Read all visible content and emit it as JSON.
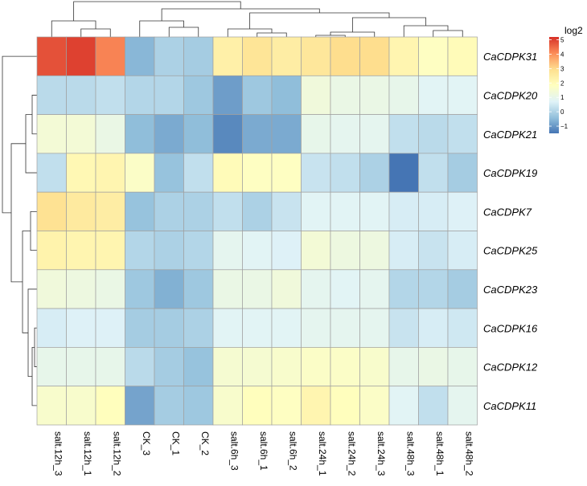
{
  "chart_data": {
    "type": "heatmap",
    "title": "",
    "legend_title": "log2",
    "legend_ticks": [
      "5",
      "4",
      "3",
      "2",
      "1",
      "0",
      "−1"
    ],
    "legend_tick_values": [
      5,
      4,
      3,
      2,
      1,
      0,
      -1
    ],
    "legend_range": [
      -1.5,
      5.2
    ],
    "colors": [
      "#4575b4",
      "#91bfdb",
      "#e0f3f8",
      "#ffffbf",
      "#fee090",
      "#fc8d59",
      "#d73027"
    ],
    "rows": [
      "CaCDPK31",
      "CaCDPK20",
      "CaCDPK21",
      "CaCDPK19",
      "CaCDPK7",
      "CaCDPK25",
      "CaCDPK23",
      "CaCDPK16",
      "CaCDPK12",
      "CaCDPK11"
    ],
    "columns": [
      "salt.12h_3",
      "salt.12h_1",
      "salt.12h_2",
      "CK_3",
      "CK_1",
      "CK_2",
      "salt.6h_3",
      "salt.6h_1",
      "salt.6h_2",
      "salt.24h_1",
      "salt.24h_2",
      "salt.24h_3",
      "salt.48h_3",
      "salt.48h_1",
      "salt.48h_2"
    ],
    "values": [
      [
        4.8,
        5.0,
        4.2,
        -0.5,
        0.0,
        -0.1,
        2.4,
        2.8,
        2.5,
        2.7,
        3.0,
        3.0,
        2.2,
        1.8,
        2.0
      ],
      [
        0.2,
        0.2,
        0.3,
        0.1,
        0.1,
        -0.2,
        -0.9,
        -0.2,
        -0.4,
        1.3,
        1.1,
        1.1,
        1.0,
        0.8,
        0.8
      ],
      [
        1.4,
        1.4,
        1.1,
        -0.4,
        -0.7,
        -0.4,
        -1.2,
        -0.7,
        -0.7,
        1.0,
        0.9,
        0.9,
        0.3,
        0.2,
        0.3
      ],
      [
        0.3,
        2.1,
        2.2,
        1.7,
        -0.3,
        0.3,
        2.0,
        1.8,
        1.8,
        0.4,
        0.3,
        0.0,
        -1.5,
        0.3,
        -0.1
      ],
      [
        2.9,
        2.6,
        2.5,
        -0.3,
        0.0,
        0.0,
        0.3,
        0.0,
        0.4,
        0.8,
        0.8,
        0.8,
        0.6,
        0.6,
        0.7
      ],
      [
        2.3,
        2.2,
        2.2,
        0.1,
        0.0,
        0.1,
        0.9,
        0.8,
        0.7,
        1.4,
        1.2,
        1.2,
        0.6,
        0.4,
        0.6
      ],
      [
        1.3,
        1.2,
        1.1,
        -0.2,
        -0.6,
        -0.2,
        1.1,
        1.1,
        1.3,
        0.9,
        0.8,
        0.9,
        0.1,
        0.1,
        -0.1
      ],
      [
        0.6,
        0.7,
        0.7,
        -0.1,
        -0.1,
        0.0,
        0.8,
        0.8,
        0.8,
        0.9,
        0.9,
        0.9,
        0.4,
        0.6,
        0.5
      ],
      [
        1.0,
        1.0,
        1.0,
        0.2,
        -0.1,
        -0.3,
        1.5,
        1.5,
        1.6,
        1.7,
        1.7,
        1.6,
        1.0,
        1.1,
        1.0
      ],
      [
        1.6,
        1.6,
        1.9,
        -0.8,
        -0.1,
        -0.2,
        1.6,
        1.9,
        1.8,
        2.2,
        1.9,
        1.7,
        0.8,
        0.3,
        0.9
      ]
    ]
  }
}
